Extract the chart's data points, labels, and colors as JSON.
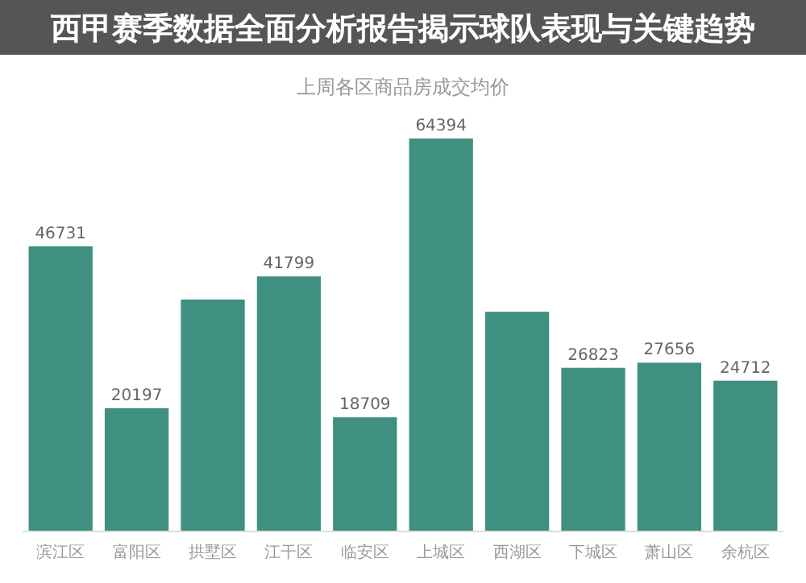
{
  "chart_data": {
    "type": "bar",
    "title": "上周各区商品房成交均价",
    "annotations": [
      "西甲赛季数据全面分析报告揭示球队表现与关键趋势"
    ],
    "categories": [
      "滨江区",
      "富阳区",
      "拱墅区",
      "江干区",
      "临安区",
      "上城区",
      "西湖区",
      "下城区",
      "萧山区",
      "余杭区"
    ],
    "values": [
      46731,
      20197,
      38000,
      41799,
      18709,
      64394,
      36000,
      26823,
      27656,
      24712
    ],
    "value_labels": [
      "46731",
      "20197",
      null,
      "41799",
      "18709",
      "64394",
      null,
      "26823",
      "27656",
      "24712"
    ],
    "color": "#3f9080"
  }
}
